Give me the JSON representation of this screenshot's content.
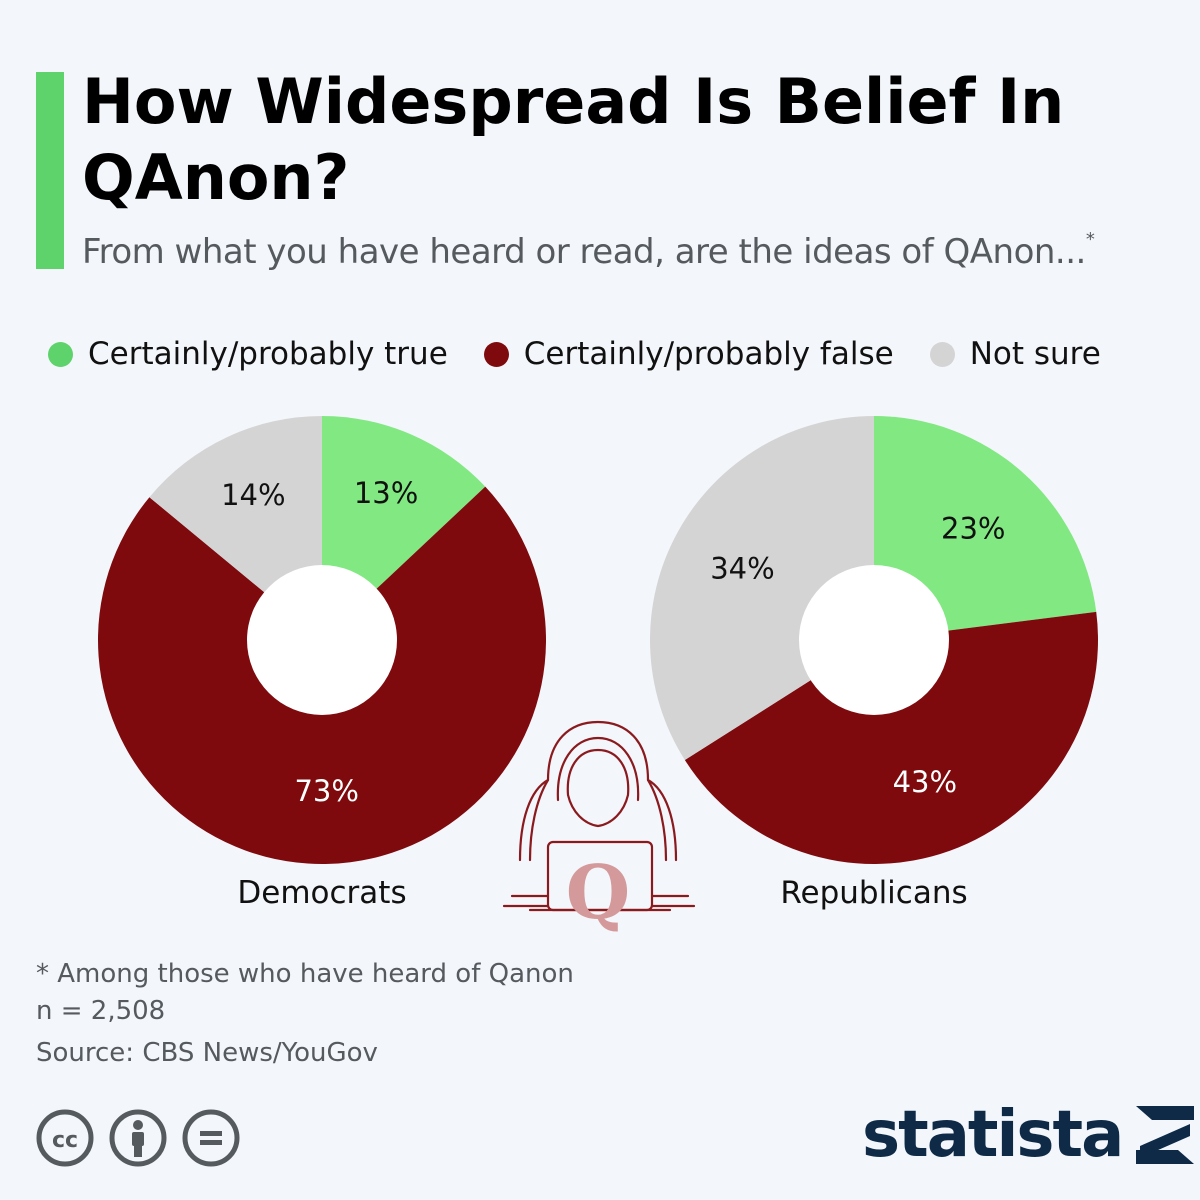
{
  "header": {
    "title": "How Widespread Is Belief In QAnon?",
    "subtitle": "From what you have heard or read, are the ideas of QAnon...",
    "subtitle_note_mark": "*",
    "accent_color": "#5fd36b"
  },
  "legend": [
    {
      "label": "Certainly/probably true",
      "color": "#5fd36b"
    },
    {
      "label": "Certainly/probably false",
      "color": "#7e0a0e"
    },
    {
      "label": "Not sure",
      "color": "#d4d4d4"
    }
  ],
  "chart_data": {
    "type": "pie",
    "variant": "donut",
    "categories": [
      "Certainly/probably true",
      "Certainly/probably false",
      "Not sure"
    ],
    "colors": [
      "#81e882",
      "#7e0a0e",
      "#d4d4d4"
    ],
    "series": [
      {
        "name": "Democrats",
        "values": [
          13,
          73,
          14
        ],
        "labels": [
          "13%",
          "73%",
          "14%"
        ]
      },
      {
        "name": "Republicans",
        "values": [
          23,
          43,
          34
        ],
        "labels": [
          "23%",
          "43%",
          "34%"
        ]
      }
    ],
    "unit": "%"
  },
  "illustration": {
    "icon": "hooded-figure-laptop-icon",
    "letter": "Q",
    "color": "#8a1a1e",
    "letter_color": "#d49a9b"
  },
  "footnote": {
    "note": "* Among those who have heard of Qanon",
    "sample": "n = 2,508",
    "source": "Source: CBS News/YouGov"
  },
  "license_icons": [
    "creative-commons-icon",
    "attribution-icon",
    "no-derivatives-icon"
  ],
  "brand": {
    "name": "statista",
    "color": "#0e2a47"
  }
}
